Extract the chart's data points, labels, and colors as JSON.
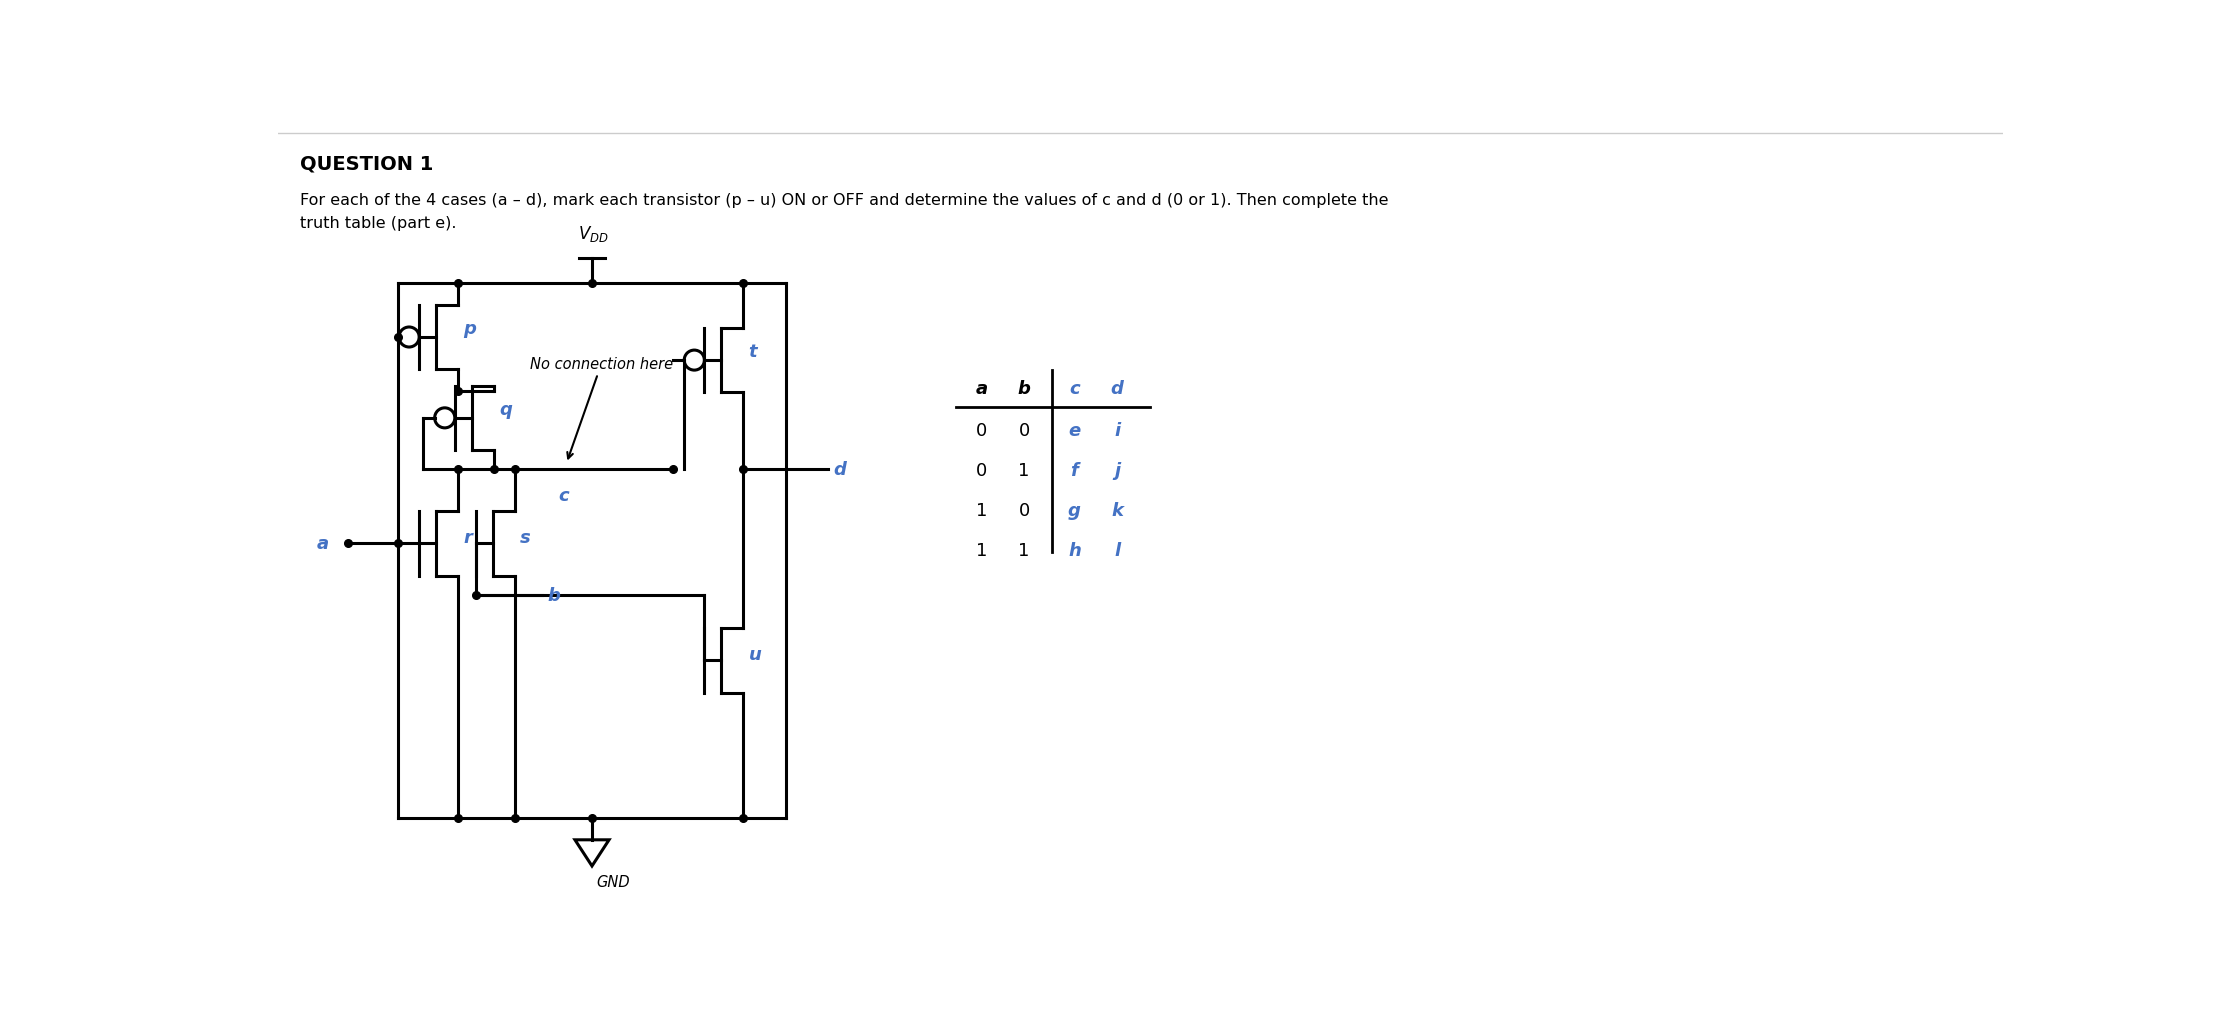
{
  "title": "QUESTION 1",
  "description": "For each of the 4 cases (a – d), mark each transistor (p – u) ON or OFF and determine the values of c and d (0 or 1). Then complete the\ntruth table (part e).",
  "blue_color": "#4472C4",
  "black_color": "#000000",
  "bg_color": "#ffffff",
  "table": {
    "headers": [
      "a",
      "b",
      "c",
      "d"
    ],
    "rows": [
      [
        "0",
        "0",
        "e",
        "i"
      ],
      [
        "0",
        "1",
        "f",
        "j"
      ],
      [
        "1",
        "0",
        "g",
        "k"
      ],
      [
        "1",
        "1",
        "h",
        "l"
      ]
    ]
  },
  "vdd_label": "$V_{DD}$",
  "gnd_label": "GND",
  "no_conn_label": "No connection here",
  "transistor_labels": [
    "p",
    "q",
    "r",
    "s",
    "t",
    "u"
  ],
  "input_label": "a",
  "node_labels": [
    "b",
    "c",
    "d"
  ]
}
